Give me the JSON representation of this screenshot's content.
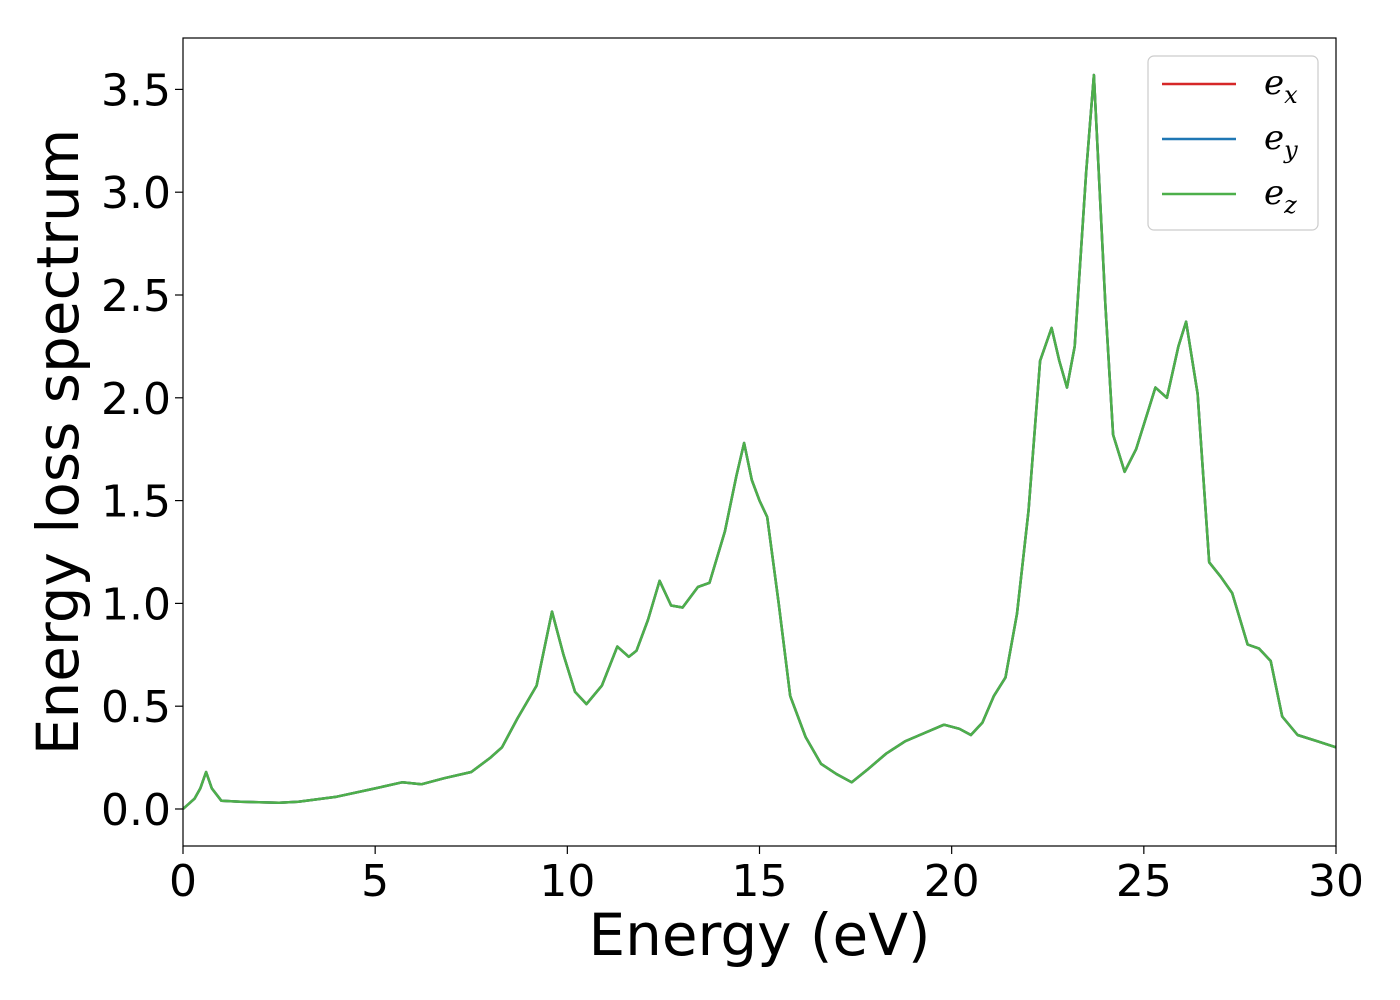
{
  "chart_data": {
    "type": "line",
    "title": "",
    "xlabel": "Energy (eV)",
    "ylabel": "Energy loss spectrum",
    "xlim": [
      0,
      30
    ],
    "ylim": [
      -0.18,
      3.75
    ],
    "xticks": [
      0,
      5,
      10,
      15,
      20,
      25,
      30
    ],
    "xtick_labels": [
      "0",
      "5",
      "10",
      "15",
      "20",
      "25",
      "30"
    ],
    "yticks": [
      0.0,
      0.5,
      1.0,
      1.5,
      2.0,
      2.5,
      3.0,
      3.5
    ],
    "ytick_labels": [
      "0.0",
      "0.5",
      "1.0",
      "1.5",
      "2.0",
      "2.5",
      "3.0",
      "3.5"
    ],
    "grid": false,
    "legend_position": "top-right",
    "x": [
      0.0,
      0.3,
      0.45,
      0.6,
      0.75,
      1.0,
      1.5,
      2.5,
      3.0,
      4.0,
      5.0,
      5.7,
      6.2,
      6.8,
      7.5,
      8.0,
      8.3,
      8.7,
      9.2,
      9.6,
      9.9,
      10.2,
      10.5,
      10.9,
      11.3,
      11.6,
      11.8,
      12.1,
      12.4,
      12.7,
      13.0,
      13.4,
      13.7,
      14.1,
      14.4,
      14.6,
      14.8,
      15.0,
      15.2,
      15.5,
      15.8,
      16.2,
      16.6,
      17.0,
      17.4,
      17.8,
      18.3,
      18.8,
      19.3,
      19.8,
      20.2,
      20.5,
      20.8,
      21.1,
      21.4,
      21.7,
      22.0,
      22.3,
      22.6,
      22.8,
      23.0,
      23.2,
      23.5,
      23.7,
      24.0,
      24.2,
      24.5,
      24.8,
      25.1,
      25.3,
      25.6,
      25.9,
      26.1,
      26.4,
      26.7,
      27.0,
      27.3,
      27.7,
      28.0,
      28.3,
      28.6,
      29.0,
      29.5,
      30.0
    ],
    "series": [
      {
        "name": "e_x",
        "label_base": "e",
        "label_sub": "x",
        "color": "#d62728",
        "values": [
          0.0,
          0.05,
          0.1,
          0.18,
          0.1,
          0.04,
          0.035,
          0.03,
          0.035,
          0.06,
          0.1,
          0.13,
          0.12,
          0.15,
          0.18,
          0.25,
          0.3,
          0.44,
          0.6,
          0.96,
          0.75,
          0.57,
          0.51,
          0.6,
          0.79,
          0.74,
          0.77,
          0.92,
          1.11,
          0.99,
          0.98,
          1.08,
          1.1,
          1.35,
          1.62,
          1.78,
          1.6,
          1.5,
          1.42,
          1.0,
          0.55,
          0.35,
          0.22,
          0.17,
          0.13,
          0.19,
          0.27,
          0.33,
          0.37,
          0.41,
          0.39,
          0.36,
          0.42,
          0.55,
          0.64,
          0.95,
          1.45,
          2.18,
          2.34,
          2.18,
          2.05,
          2.25,
          3.1,
          3.57,
          2.45,
          1.82,
          1.64,
          1.75,
          1.93,
          2.05,
          2.0,
          2.25,
          2.37,
          2.02,
          1.2,
          1.13,
          1.05,
          0.8,
          0.78,
          0.72,
          0.45,
          0.36,
          0.33,
          0.3
        ]
      },
      {
        "name": "e_y",
        "label_base": "e",
        "label_sub": "y",
        "color": "#1f77b4",
        "values": [
          0.0,
          0.05,
          0.1,
          0.18,
          0.1,
          0.04,
          0.035,
          0.03,
          0.035,
          0.06,
          0.1,
          0.13,
          0.12,
          0.15,
          0.18,
          0.25,
          0.3,
          0.44,
          0.6,
          0.96,
          0.75,
          0.57,
          0.51,
          0.6,
          0.79,
          0.74,
          0.77,
          0.92,
          1.11,
          0.99,
          0.98,
          1.08,
          1.1,
          1.35,
          1.62,
          1.78,
          1.6,
          1.5,
          1.42,
          1.0,
          0.55,
          0.35,
          0.22,
          0.17,
          0.13,
          0.19,
          0.27,
          0.33,
          0.37,
          0.41,
          0.39,
          0.36,
          0.42,
          0.55,
          0.64,
          0.95,
          1.45,
          2.18,
          2.34,
          2.18,
          2.05,
          2.25,
          3.1,
          3.57,
          2.45,
          1.82,
          1.64,
          1.75,
          1.93,
          2.05,
          2.0,
          2.25,
          2.37,
          2.02,
          1.2,
          1.13,
          1.05,
          0.8,
          0.78,
          0.72,
          0.45,
          0.36,
          0.33,
          0.3
        ]
      },
      {
        "name": "e_z",
        "label_base": "e",
        "label_sub": "z",
        "color": "#4daf4a",
        "values": [
          0.0,
          0.05,
          0.1,
          0.18,
          0.1,
          0.04,
          0.035,
          0.03,
          0.035,
          0.06,
          0.1,
          0.13,
          0.12,
          0.15,
          0.18,
          0.25,
          0.3,
          0.44,
          0.6,
          0.96,
          0.75,
          0.57,
          0.51,
          0.6,
          0.79,
          0.74,
          0.77,
          0.92,
          1.11,
          0.99,
          0.98,
          1.08,
          1.1,
          1.35,
          1.62,
          1.78,
          1.6,
          1.5,
          1.42,
          1.0,
          0.55,
          0.35,
          0.22,
          0.17,
          0.13,
          0.19,
          0.27,
          0.33,
          0.37,
          0.41,
          0.39,
          0.36,
          0.42,
          0.55,
          0.64,
          0.95,
          1.45,
          2.18,
          2.34,
          2.18,
          2.05,
          2.25,
          3.1,
          3.57,
          2.45,
          1.82,
          1.64,
          1.75,
          1.93,
          2.05,
          2.0,
          2.25,
          2.37,
          2.02,
          1.2,
          1.13,
          1.05,
          0.8,
          0.78,
          0.72,
          0.45,
          0.36,
          0.33,
          0.3
        ]
      }
    ]
  }
}
